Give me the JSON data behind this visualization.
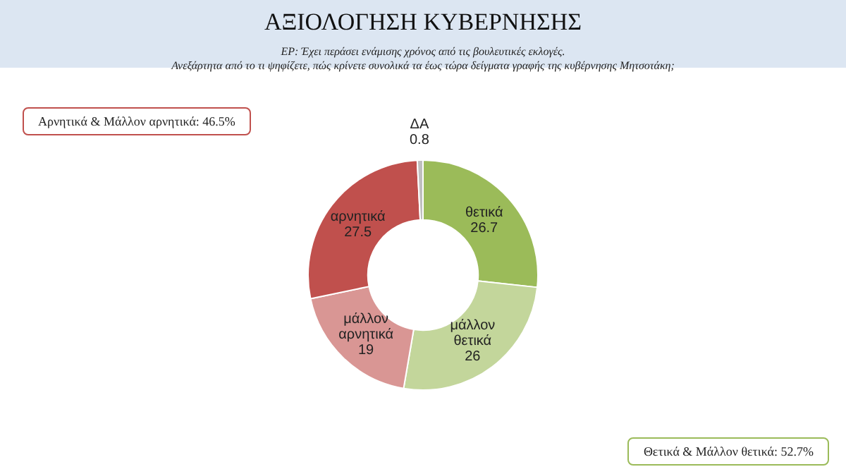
{
  "chart_data": {
    "type": "donut",
    "title": "ΑΞΙΟΛΟΓΗΣΗ ΚΥΒΕΡΝΗΣΗΣ",
    "subtitle": "ΕΡ: Έχει περάσει ενάμισης χρόνος  από τις βουλευτικές εκλογές.\nΑνεξάρτητα από το τι ψηφίζετε, πώς κρίνετε συνολικά τα έως τώρα δείγματα γραφής της κυβέρνησης Μητσοτάκη;",
    "categories": [
      "θετικά",
      "μάλλον θετικά",
      "μάλλον αρνητικά",
      "αρνητικά",
      "ΔΑ"
    ],
    "values": [
      26.7,
      26,
      19,
      27.5,
      0.8
    ],
    "colors": [
      "#9bbb59",
      "#c3d69b",
      "#d99694",
      "#c0504d",
      "#bfbfbf"
    ],
    "data_labels": true,
    "annotations": [
      "Αρνητικά & Μάλλον αρνητικά: 46.5%",
      "Θετικά & Μάλλον θετικά: 52.7%"
    ]
  }
}
